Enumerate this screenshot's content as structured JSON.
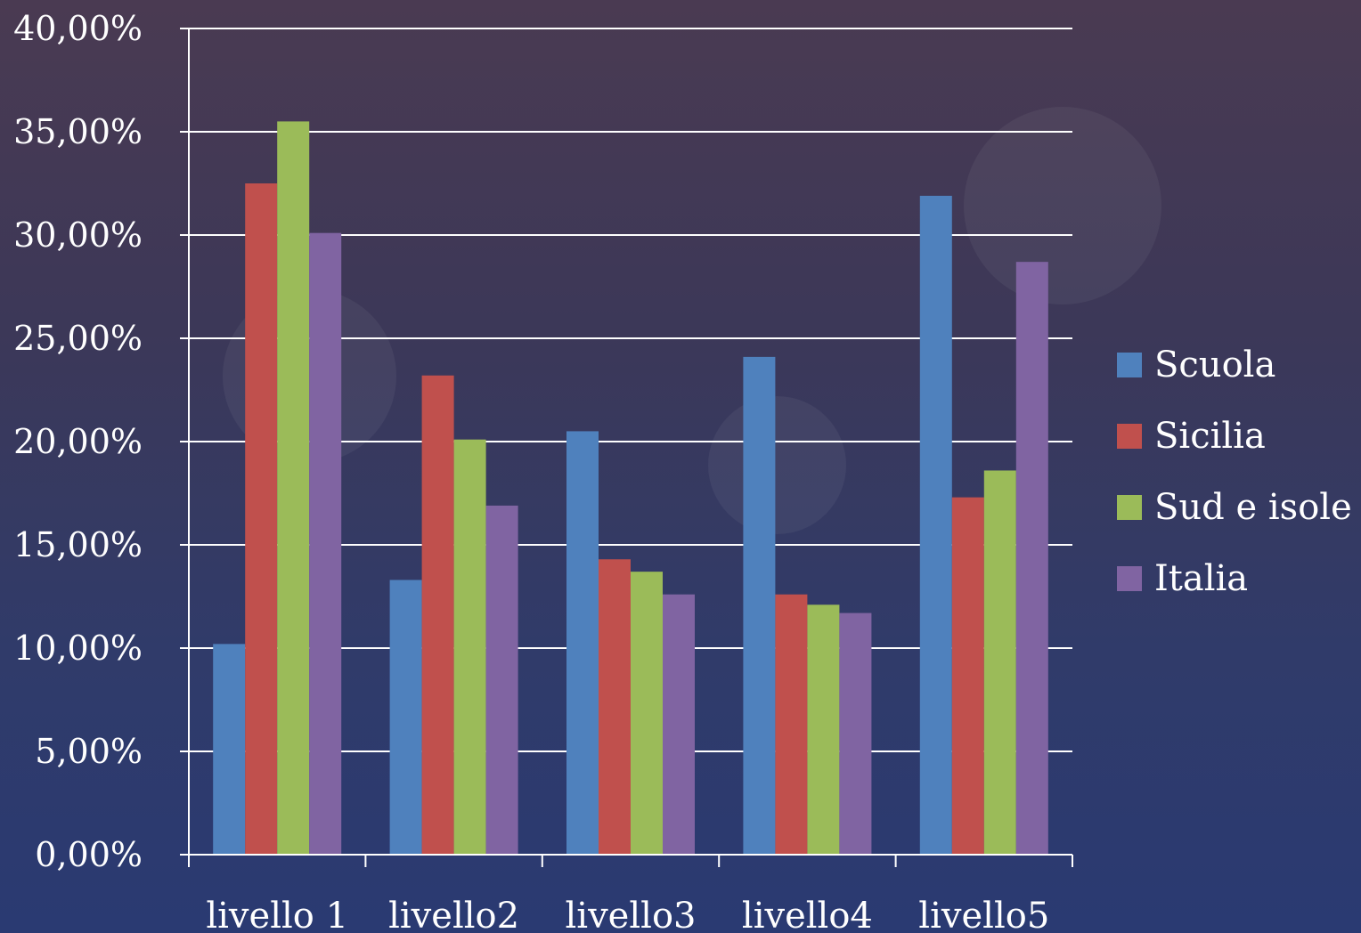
{
  "chart_data": {
    "type": "bar",
    "categories": [
      "livello 1",
      "livello2",
      "livello3",
      "livello4",
      "livello5"
    ],
    "series": [
      {
        "name": "Scuola",
        "color": "#4f81bd",
        "values": [
          10.2,
          13.3,
          20.5,
          24.1,
          31.9
        ]
      },
      {
        "name": "Sicilia",
        "color": "#c0504d",
        "values": [
          32.5,
          23.2,
          14.3,
          12.6,
          17.3
        ]
      },
      {
        "name": "Sud e isole",
        "color": "#9bbb59",
        "values": [
          35.5,
          20.1,
          13.7,
          12.1,
          18.6
        ]
      },
      {
        "name": "Italia",
        "color": "#8064a2",
        "values": [
          30.1,
          16.9,
          12.6,
          11.7,
          28.7
        ]
      }
    ],
    "ylim": [
      0,
      40
    ],
    "yticks": [
      0,
      5,
      10,
      15,
      20,
      25,
      30,
      35,
      40
    ],
    "ytick_labels": [
      "0,00%",
      "5,00%",
      "10,00%",
      "15,00%",
      "20,00%",
      "25,00%",
      "30,00%",
      "35,00%",
      "40,00%"
    ],
    "grid": true,
    "legend_position": "right",
    "title": "",
    "xlabel": "",
    "ylabel": ""
  }
}
